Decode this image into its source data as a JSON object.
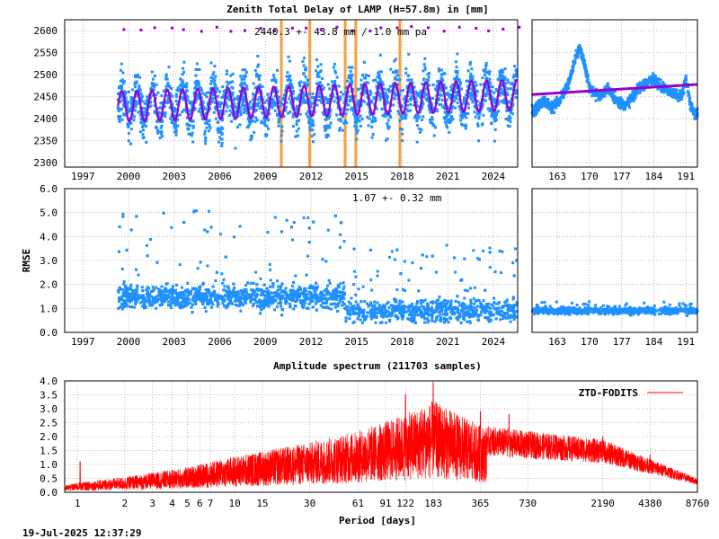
{
  "figure": {
    "top_title": "Zenith Total Delay of LAMP (H=57.8m) in [mm]",
    "timestamp": "19-Jul-2025 12:37:29"
  },
  "colors": {
    "ztd_points": "#1e90ff",
    "model": "#9400d3",
    "outlier": "#9400d3",
    "event_lines": "#f4a040",
    "spectrum": "#ff0000",
    "grid": "#a8a8a8"
  },
  "chart_data": [
    {
      "id": "ztd_timeseries",
      "type": "scatter",
      "title": "Zenith Total Delay of LAMP (H=57.8m) in [mm]",
      "annotation": "2440.3 +-  43.8 mm /  1.0 mm pa",
      "x_ticks": [
        "1997",
        "2000",
        "2003",
        "2006",
        "2009",
        "2012",
        "2015",
        "2018",
        "2021",
        "2024"
      ],
      "y_ticks": [
        "2300",
        "2350",
        "2400",
        "2450",
        "2500",
        "2550",
        "2600"
      ],
      "xlim": [
        1995.8,
        2025.6
      ],
      "ylim": [
        2290,
        2625
      ],
      "data_range_years": [
        1999.3,
        2025.55
      ],
      "mean": 2440.3,
      "std": 43.8,
      "trend_mm_per_year": 1.0,
      "seasonal_amplitude": 35,
      "point_spread": 110,
      "event_lines_years": [
        2010.05,
        2011.92,
        2014.25,
        2014.95,
        2017.85
      ],
      "series": [
        {
          "name": "",
          "role": "observations",
          "color": "#1e90ff"
        },
        {
          "name": "",
          "role": "seasonal model",
          "color": "#9400d3"
        }
      ],
      "grid": true
    },
    {
      "id": "ztd_recent_zoom",
      "type": "scatter",
      "x_ticks": [
        "163",
        "170",
        "177",
        "184",
        "191"
      ],
      "xlim": [
        157.5,
        193.5
      ],
      "ylim": [
        2290,
        2625
      ],
      "trend_line": [
        [
          157.5,
          2455
        ],
        [
          193.5,
          2478
        ]
      ],
      "profile_days": [
        158,
        160,
        162,
        164,
        165,
        166,
        167,
        168,
        169,
        170,
        172,
        174,
        176,
        178,
        180,
        182,
        184,
        186,
        188,
        190,
        191,
        192,
        193
      ],
      "profile_values": [
        2420,
        2440,
        2425,
        2450,
        2470,
        2500,
        2540,
        2560,
        2520,
        2470,
        2450,
        2470,
        2440,
        2430,
        2460,
        2480,
        2490,
        2470,
        2460,
        2450,
        2490,
        2430,
        2410
      ],
      "grid": true
    },
    {
      "id": "rmse_timeseries",
      "type": "scatter",
      "ylabel": "RMSE",
      "annotation": "1.07 +-  0.32 mm",
      "x_ticks": [
        "1997",
        "2000",
        "2003",
        "2006",
        "2009",
        "2012",
        "2015",
        "2018",
        "2021",
        "2024"
      ],
      "y_ticks": [
        "0.0",
        "1.0",
        "2.0",
        "3.0",
        "4.0",
        "5.0",
        "6.0"
      ],
      "xlim": [
        1995.8,
        2025.6
      ],
      "ylim": [
        0,
        6
      ],
      "mean": 1.07,
      "std": 0.32,
      "early_level": 1.5,
      "late_level": 0.9,
      "level_change_year": 2014.3,
      "max_outlier": 5.3,
      "grid": true
    },
    {
      "id": "rmse_recent_zoom",
      "type": "scatter",
      "x_ticks": [
        "163",
        "170",
        "177",
        "184",
        "191"
      ],
      "xlim": [
        157.5,
        193.5
      ],
      "ylim": [
        0,
        6
      ],
      "level": 0.9,
      "grid": true
    },
    {
      "id": "amplitude_spectrum",
      "type": "line",
      "title": "Amplitude spectrum (211703 samples)",
      "xlabel": "Period [days]",
      "ylabel": "",
      "x_scale": "log",
      "xlim": [
        0.83,
        8760
      ],
      "ylim": [
        0,
        4
      ],
      "x_ticks": [
        "1",
        "2",
        "3",
        "4",
        "5",
        "6",
        "7",
        "10",
        "15",
        "30",
        "61",
        "91",
        "122",
        "183",
        "365",
        "730",
        "2190",
        "4380",
        "8760"
      ],
      "x_tick_values": [
        1,
        2,
        3,
        4,
        5,
        6,
        7,
        10,
        15,
        30,
        61,
        91,
        122,
        183,
        365,
        730,
        2190,
        4380,
        8760
      ],
      "y_ticks": [
        "0.0",
        "0.5",
        "1.0",
        "1.5",
        "2.0",
        "2.5",
        "3.0",
        "3.5",
        "4.0"
      ],
      "legend": "ZTD-FODITS",
      "legend_position": "top-right",
      "envelope_periods": [
        0.83,
        1,
        2,
        5,
        10,
        30,
        60,
        122,
        183,
        365,
        730,
        2190,
        8760
      ],
      "envelope_amplitudes": [
        0.25,
        0.35,
        0.55,
        0.9,
        1.3,
        1.8,
        2.2,
        2.8,
        3.3,
        2.4,
        2.2,
        1.9,
        0.5
      ],
      "peaks": [
        [
          1.04,
          1.1
        ],
        [
          122,
          3.5
        ],
        [
          183,
          3.95
        ],
        [
          365,
          2.9
        ],
        [
          555,
          2.8
        ],
        [
          1100,
          2.05
        ],
        [
          2190,
          2.0
        ],
        [
          4380,
          1.35
        ]
      ],
      "series": [
        {
          "name": "ZTD-FODITS",
          "color": "#ff0000"
        }
      ],
      "grid": true
    }
  ]
}
